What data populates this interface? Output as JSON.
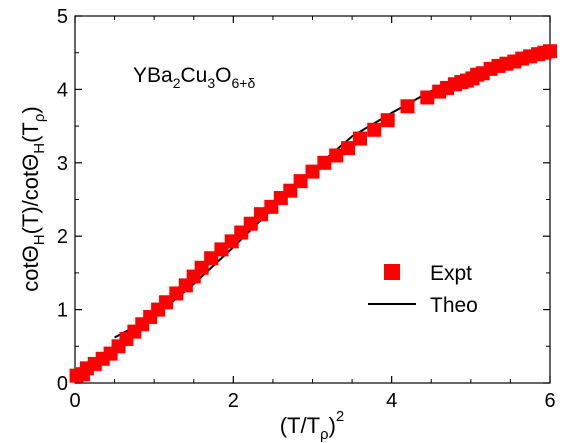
{
  "chart_data": {
    "type": "scatter",
    "xlabel": {
      "base": "(T/T",
      "sub": "ρ",
      "close": ")",
      "sup": "2"
    },
    "ylabel": {
      "p1": "cotΘ",
      "s1": "H",
      "p2": "(T)/cotΘ",
      "s2": "H",
      "p3": "(T",
      "s3": "ρ",
      "p4": ")"
    },
    "annotation": {
      "p1": "YBa",
      "s1": "2",
      "p2": "Cu",
      "s2": "3",
      "p3": "O",
      "s3": "6+δ"
    },
    "xlim": [
      0,
      6
    ],
    "ylim": [
      0,
      5
    ],
    "x_ticks": [
      "0",
      "2",
      "4",
      "6"
    ],
    "y_ticks": [
      "0",
      "1",
      "2",
      "3",
      "4",
      "5"
    ],
    "legend": {
      "position": "bottom-right",
      "entries": [
        "Expt",
        "Theo"
      ]
    },
    "colors": {
      "expt": "#ff0000",
      "theo": "#000000"
    },
    "series": [
      {
        "name": "Expt",
        "kind": "markers",
        "x": [
          0.02,
          0.1,
          0.15,
          0.25,
          0.35,
          0.45,
          0.55,
          0.65,
          0.75,
          0.85,
          0.95,
          1.05,
          1.15,
          1.28,
          1.4,
          1.5,
          1.6,
          1.72,
          1.85,
          1.98,
          2.1,
          2.22,
          2.35,
          2.48,
          2.6,
          2.72,
          2.85,
          3.0,
          3.15,
          3.3,
          3.45,
          3.6,
          3.78,
          3.95,
          4.2,
          4.45,
          4.6,
          4.7,
          4.8,
          4.88,
          4.95,
          5.02,
          5.08,
          5.15,
          5.25,
          5.35,
          5.45,
          5.55,
          5.65,
          5.75,
          5.85,
          5.93,
          6.0
        ],
        "y": [
          0.1,
          0.12,
          0.2,
          0.26,
          0.33,
          0.4,
          0.5,
          0.6,
          0.7,
          0.8,
          0.9,
          1.0,
          1.1,
          1.22,
          1.33,
          1.45,
          1.57,
          1.7,
          1.82,
          1.93,
          2.05,
          2.17,
          2.3,
          2.4,
          2.52,
          2.62,
          2.75,
          2.88,
          3.0,
          3.1,
          3.2,
          3.33,
          3.45,
          3.58,
          3.77,
          3.89,
          3.97,
          4.02,
          4.07,
          4.1,
          4.12,
          4.15,
          4.2,
          4.22,
          4.28,
          4.32,
          4.35,
          4.38,
          4.42,
          4.45,
          4.48,
          4.5,
          4.52
        ]
      },
      {
        "name": "Theo",
        "kind": "line",
        "x": [
          0.5,
          0.8,
          1.0,
          1.5,
          2.0,
          2.5,
          3.0,
          3.5,
          4.0,
          4.5,
          5.0,
          5.5,
          6.0
        ],
        "y": [
          0.62,
          0.79,
          0.9,
          1.35,
          1.85,
          2.38,
          2.9,
          3.36,
          3.68,
          3.98,
          4.12,
          4.3,
          4.52
        ]
      }
    ]
  }
}
